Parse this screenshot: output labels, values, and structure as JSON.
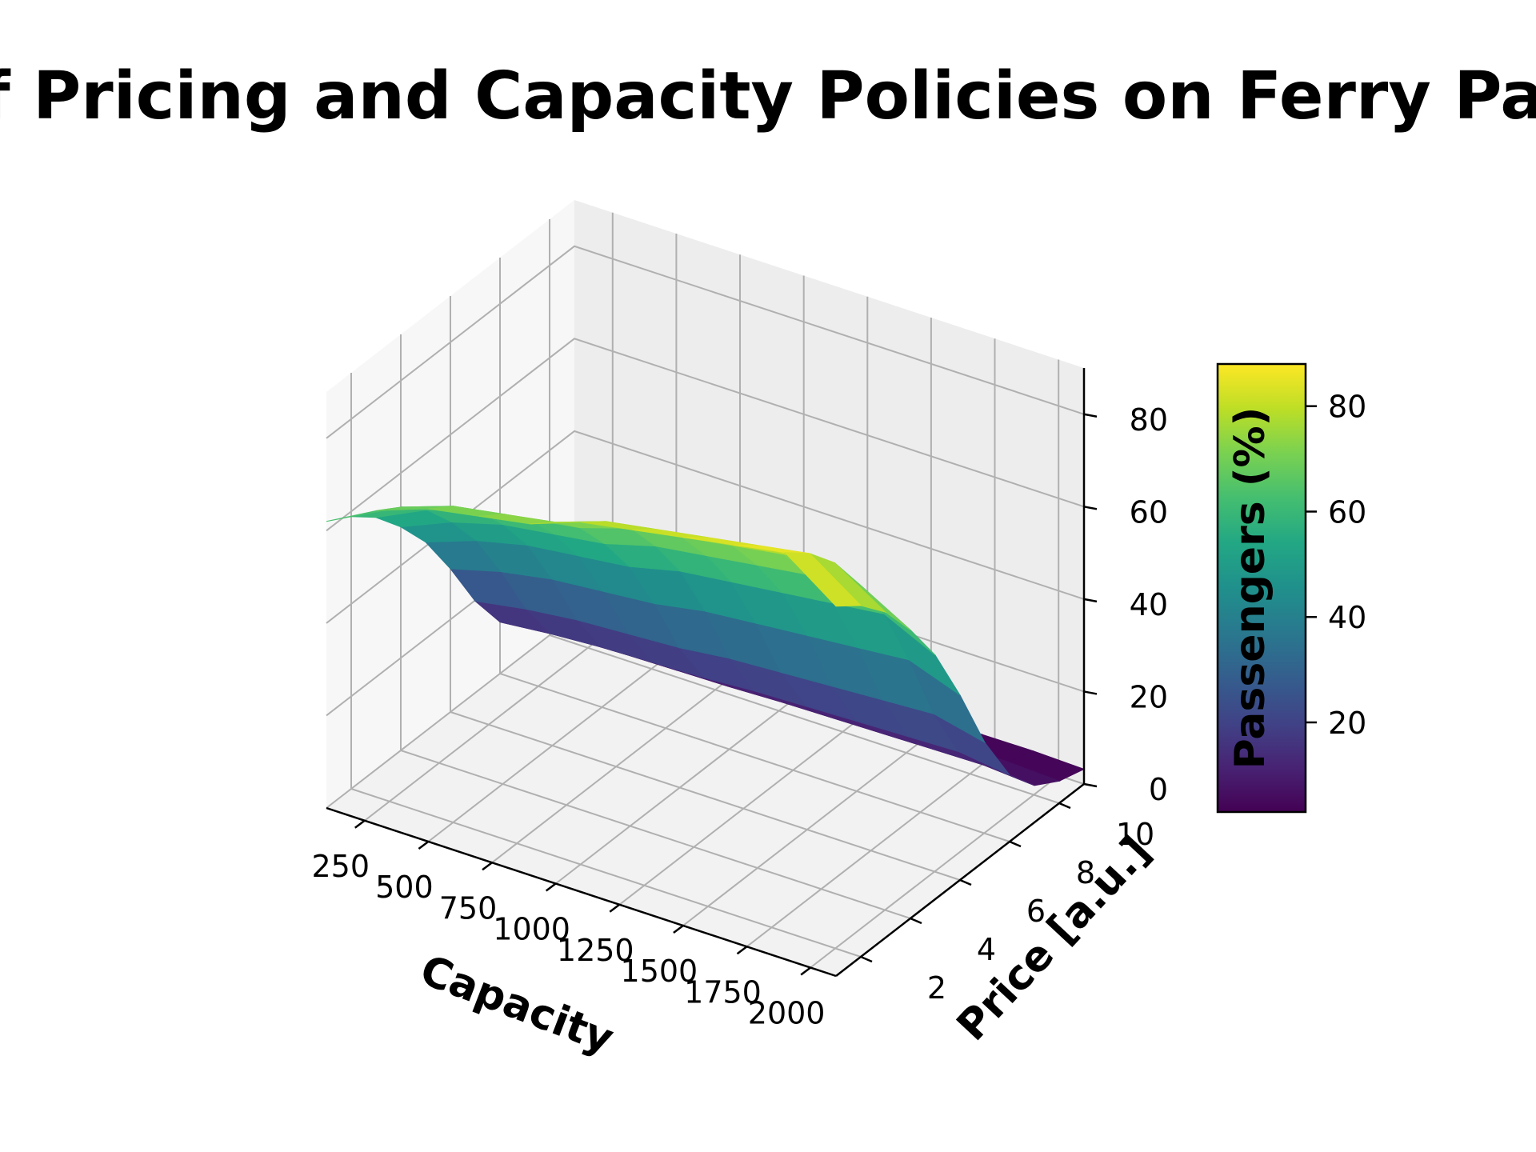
{
  "chart_data": {
    "type": "surface3d",
    "title": "Impact of Pricing and Capacity Policies on Ferry Passengers",
    "xlabel": "Capacity",
    "ylabel": "Price [a.u.]",
    "zlabel": "",
    "colorbar_label": "Passengers (%)",
    "colormap": "viridis",
    "x": [
      100,
      300,
      500,
      700,
      900,
      1100,
      1300,
      1500,
      1700,
      1900,
      2100
    ],
    "y": [
      1,
      2,
      3,
      4,
      5,
      6,
      7,
      8,
      9,
      10,
      11
    ],
    "xlim": [
      100,
      2100
    ],
    "ylim": [
      1,
      11
    ],
    "zlim": [
      0,
      90
    ],
    "x_ticks": [
      "250",
      "500",
      "750",
      "1000",
      "1250",
      "1500",
      "1750",
      "2000"
    ],
    "y_ticks": [
      "2",
      "4",
      "6",
      "8",
      "10"
    ],
    "z_ticks": [
      "0",
      "20",
      "40",
      "60",
      "80"
    ],
    "colorbar_ticks": [
      "20",
      "40",
      "60",
      "80"
    ],
    "colorbar_range": [
      3,
      88
    ],
    "z_front_row": [
      62,
      68,
      72,
      74,
      76,
      80,
      82,
      84,
      86,
      88,
      80
    ],
    "z_price_decay": [
      1.0,
      0.95,
      0.88,
      0.78,
      0.66,
      0.5,
      0.32,
      0.18,
      0.1,
      0.06,
      0.04
    ],
    "grid": true
  }
}
